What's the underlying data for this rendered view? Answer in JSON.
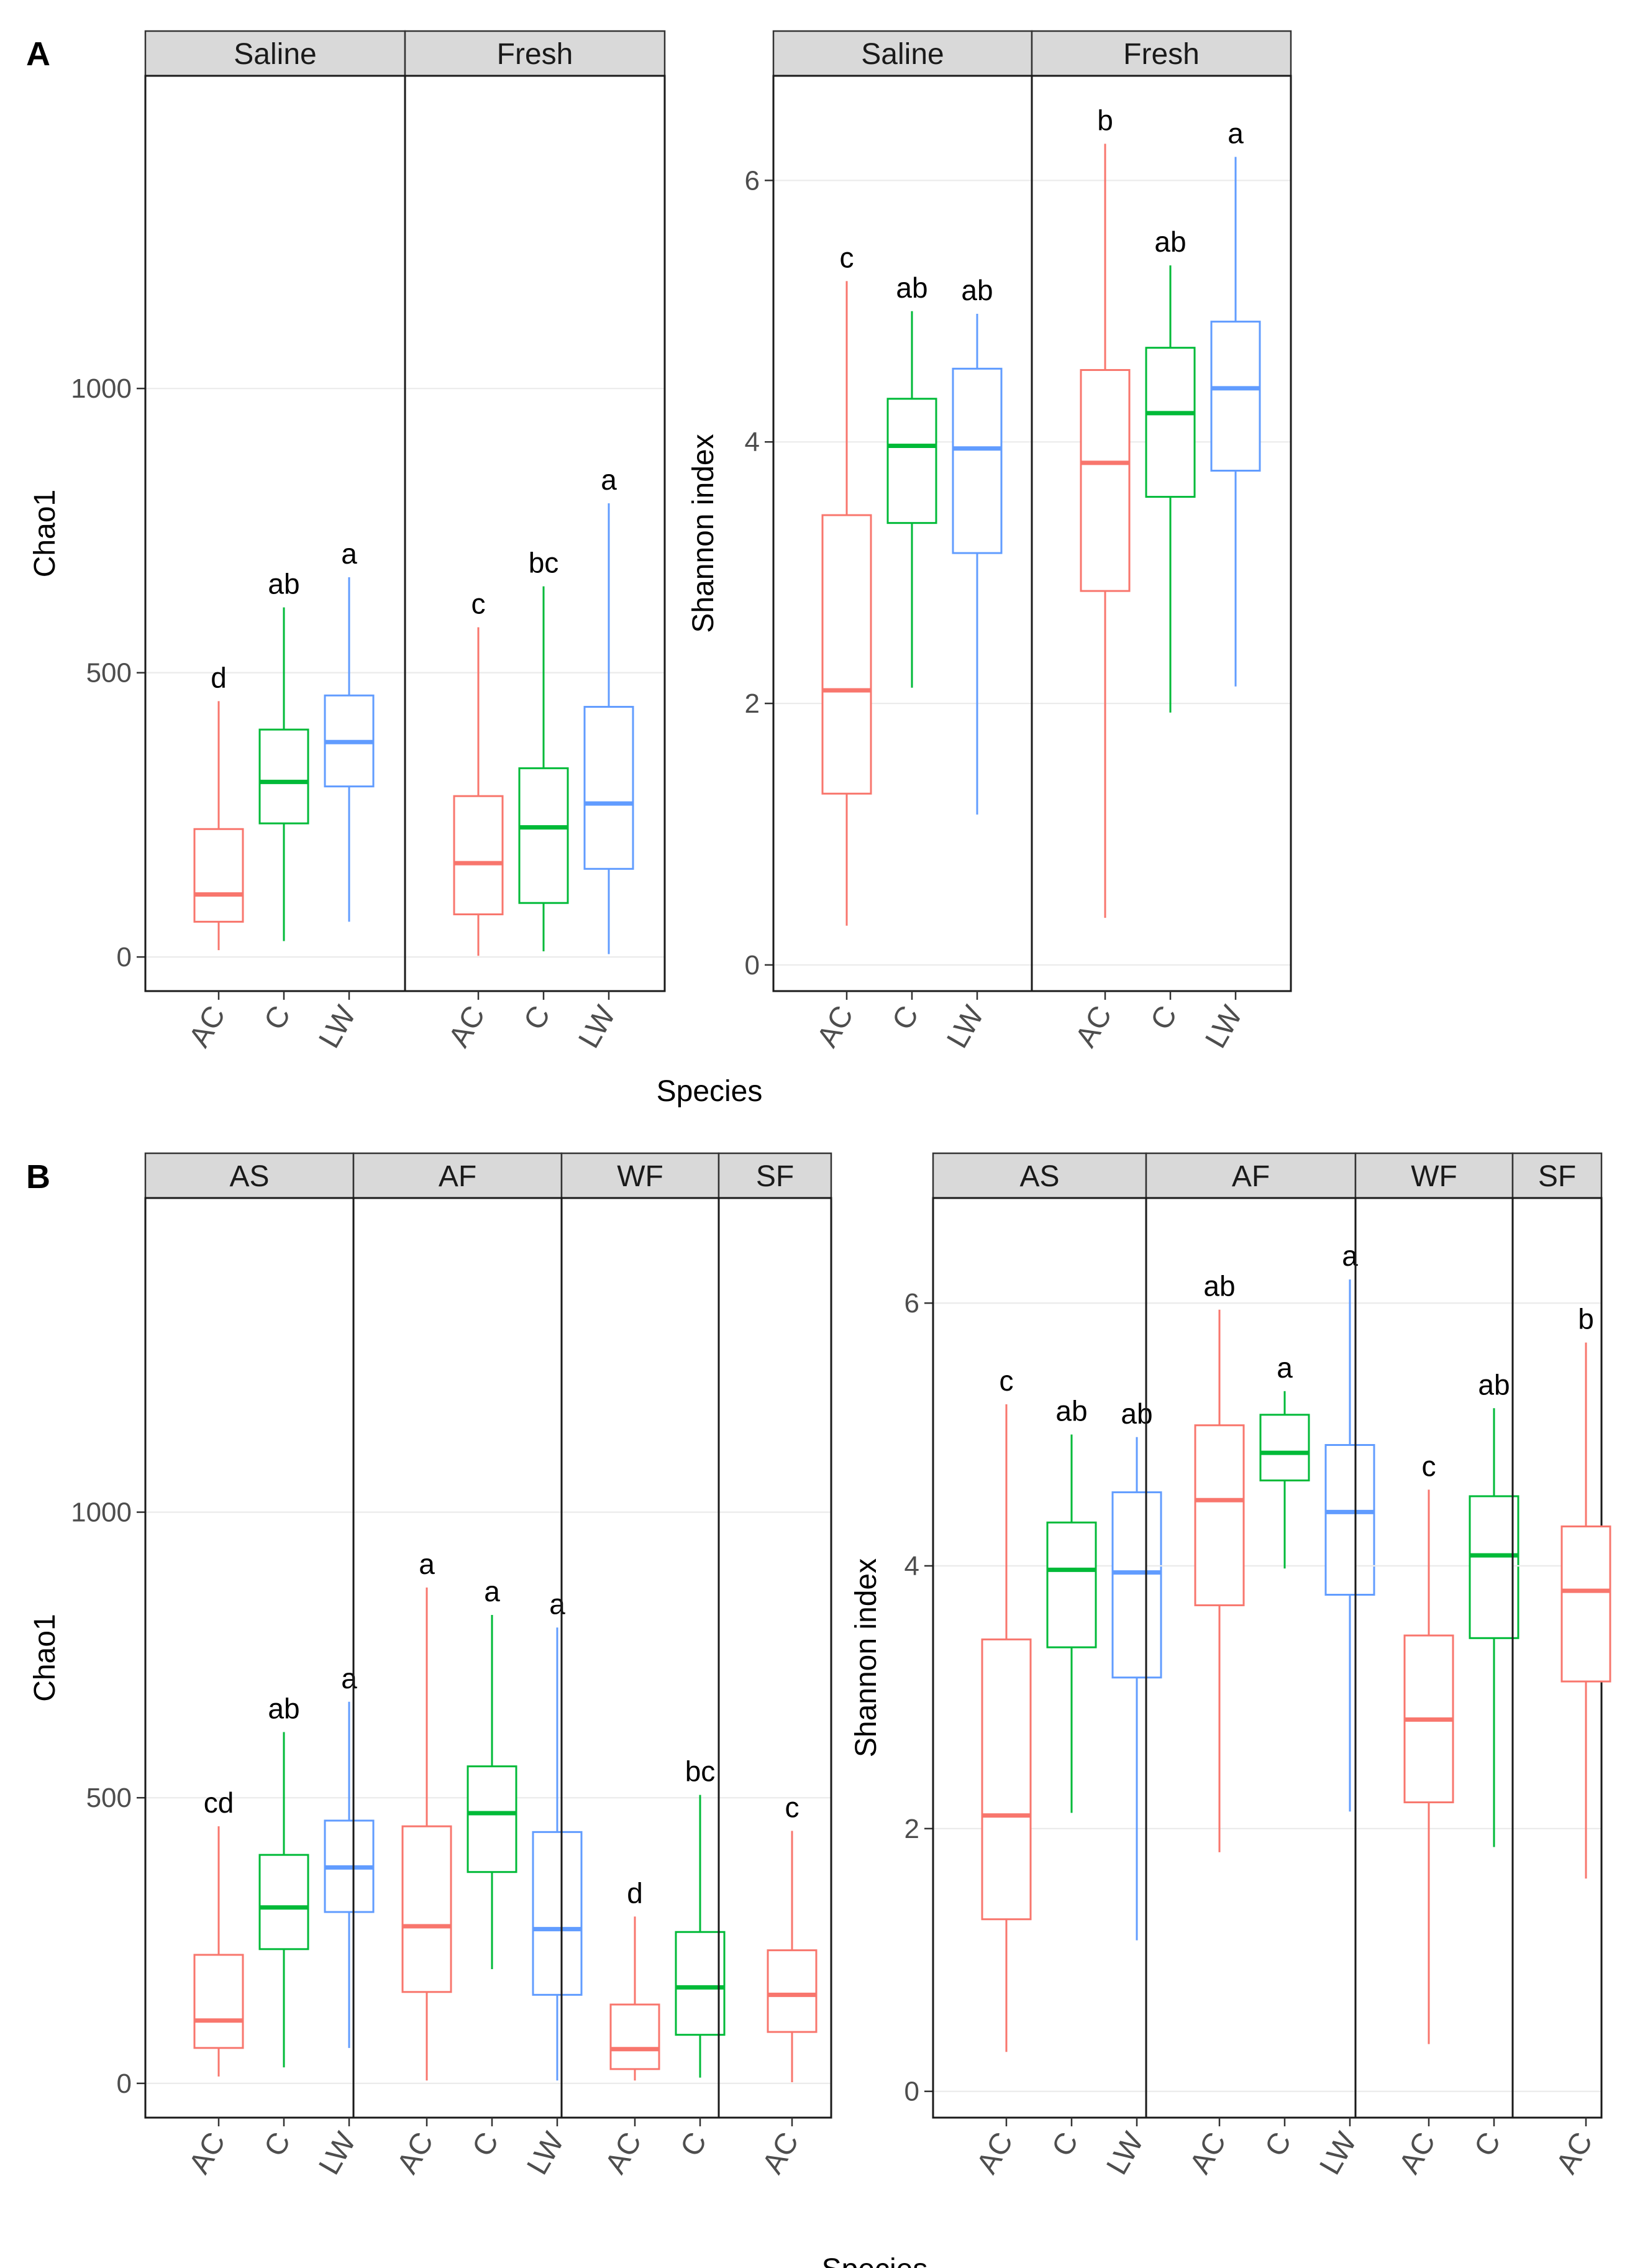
{
  "panels": [
    {
      "letter": "A"
    },
    {
      "letter": "B"
    }
  ],
  "chart_data": [
    {
      "type": "boxplot",
      "panel": "A",
      "xlabel": "Species",
      "ylabel": "Chao1",
      "ylim": [
        -60,
        1550
      ],
      "yticks": [
        0,
        500,
        1000
      ],
      "grid": true,
      "legend": "none",
      "facets": [
        {
          "label": "Saline",
          "boxes": [
            {
              "category": "AC",
              "min": 12,
              "q1": 62,
              "median": 110,
              "q3": 225,
              "max": 450,
              "sig": "d"
            },
            {
              "category": "C",
              "min": 28,
              "q1": 235,
              "median": 308,
              "q3": 400,
              "max": 615,
              "sig": "ab"
            },
            {
              "category": "LW",
              "min": 62,
              "q1": 300,
              "median": 378,
              "q3": 460,
              "max": 668,
              "sig": "a"
            }
          ]
        },
        {
          "label": "Fresh",
          "boxes": [
            {
              "category": "AC",
              "min": 2,
              "q1": 75,
              "median": 165,
              "q3": 283,
              "max": 580,
              "sig": "c"
            },
            {
              "category": "C",
              "min": 10,
              "q1": 95,
              "median": 228,
              "q3": 332,
              "max": 652,
              "sig": "bc"
            },
            {
              "category": "LW",
              "min": 5,
              "q1": 155,
              "median": 270,
              "q3": 440,
              "max": 798,
              "sig": "a"
            }
          ]
        }
      ]
    },
    {
      "type": "boxplot",
      "panel": "A",
      "xlabel": "",
      "ylabel": "Shannon index",
      "ylim": [
        -0.2,
        6.8
      ],
      "yticks": [
        0,
        2,
        4,
        6
      ],
      "grid": true,
      "legend": "none",
      "facets": [
        {
          "label": "Saline",
          "boxes": [
            {
              "category": "AC",
              "min": 0.3,
              "q1": 1.31,
              "median": 2.1,
              "q3": 3.44,
              "max": 5.23,
              "sig": "c"
            },
            {
              "category": "C",
              "min": 2.12,
              "q1": 3.38,
              "median": 3.97,
              "q3": 4.33,
              "max": 5.0,
              "sig": "ab"
            },
            {
              "category": "LW",
              "min": 1.15,
              "q1": 3.15,
              "median": 3.95,
              "q3": 4.56,
              "max": 4.98,
              "sig": "ab"
            }
          ]
        },
        {
          "label": "Fresh",
          "boxes": [
            {
              "category": "AC",
              "min": 0.36,
              "q1": 2.86,
              "median": 3.84,
              "q3": 4.55,
              "max": 6.28,
              "sig": "b"
            },
            {
              "category": "C",
              "min": 1.93,
              "q1": 3.58,
              "median": 4.22,
              "q3": 4.72,
              "max": 5.35,
              "sig": "ab"
            },
            {
              "category": "LW",
              "min": 2.13,
              "q1": 3.78,
              "median": 4.41,
              "q3": 4.92,
              "max": 6.18,
              "sig": "a"
            }
          ]
        }
      ]
    },
    {
      "type": "boxplot",
      "panel": "B",
      "xlabel": "Species",
      "ylabel": "Chao1",
      "ylim": [
        -60,
        1550
      ],
      "yticks": [
        0,
        500,
        1000
      ],
      "grid": true,
      "legend": "none",
      "facets": [
        {
          "label": "AS",
          "boxes": [
            {
              "category": "AC",
              "min": 12,
              "q1": 62,
              "median": 110,
              "q3": 225,
              "max": 450,
              "sig": "cd"
            },
            {
              "category": "C",
              "min": 28,
              "q1": 235,
              "median": 308,
              "q3": 400,
              "max": 615,
              "sig": "ab"
            },
            {
              "category": "LW",
              "min": 62,
              "q1": 300,
              "median": 378,
              "q3": 460,
              "max": 668,
              "sig": "a"
            }
          ]
        },
        {
          "label": "AF",
          "boxes": [
            {
              "category": "AC",
              "min": 5,
              "q1": 160,
              "median": 275,
              "q3": 450,
              "max": 868,
              "sig": "a"
            },
            {
              "category": "C",
              "min": 200,
              "q1": 370,
              "median": 473,
              "q3": 555,
              "max": 820,
              "sig": "a"
            },
            {
              "category": "LW",
              "min": 5,
              "q1": 155,
              "median": 270,
              "q3": 440,
              "max": 798,
              "sig": "a"
            }
          ]
        },
        {
          "label": "WF",
          "boxes": [
            {
              "category": "AC",
              "min": 5,
              "q1": 25,
              "median": 60,
              "q3": 138,
              "max": 292,
              "sig": "d"
            },
            {
              "category": "C",
              "min": 10,
              "q1": 85,
              "median": 168,
              "q3": 265,
              "max": 505,
              "sig": "bc"
            }
          ]
        },
        {
          "label": "SF",
          "boxes": [
            {
              "category": "AC",
              "min": 2,
              "q1": 90,
              "median": 155,
              "q3": 233,
              "max": 442,
              "sig": "c"
            }
          ]
        }
      ]
    },
    {
      "type": "boxplot",
      "panel": "B",
      "xlabel": "",
      "ylabel": "Shannon index",
      "ylim": [
        -0.2,
        6.8
      ],
      "yticks": [
        0,
        2,
        4,
        6
      ],
      "grid": true,
      "legend": "none",
      "facets": [
        {
          "label": "AS",
          "boxes": [
            {
              "category": "AC",
              "min": 0.3,
              "q1": 1.31,
              "median": 2.1,
              "q3": 3.44,
              "max": 5.23,
              "sig": "c"
            },
            {
              "category": "C",
              "min": 2.12,
              "q1": 3.38,
              "median": 3.97,
              "q3": 4.33,
              "max": 5.0,
              "sig": "ab"
            },
            {
              "category": "LW",
              "min": 1.15,
              "q1": 3.15,
              "median": 3.95,
              "q3": 4.56,
              "max": 4.98,
              "sig": "ab"
            }
          ]
        },
        {
          "label": "AF",
          "boxes": [
            {
              "category": "AC",
              "min": 1.82,
              "q1": 3.7,
              "median": 4.5,
              "q3": 5.07,
              "max": 5.95,
              "sig": "ab"
            },
            {
              "category": "C",
              "min": 3.98,
              "q1": 4.65,
              "median": 4.86,
              "q3": 5.15,
              "max": 5.33,
              "sig": "a"
            },
            {
              "category": "LW",
              "min": 2.13,
              "q1": 3.78,
              "median": 4.41,
              "q3": 4.92,
              "max": 6.18,
              "sig": "a"
            }
          ]
        },
        {
          "label": "WF",
          "boxes": [
            {
              "category": "AC",
              "min": 0.36,
              "q1": 2.2,
              "median": 2.83,
              "q3": 3.47,
              "max": 4.58,
              "sig": "c"
            },
            {
              "category": "C",
              "min": 1.86,
              "q1": 3.45,
              "median": 4.08,
              "q3": 4.53,
              "max": 5.2,
              "sig": "ab"
            }
          ]
        },
        {
          "label": "SF",
          "boxes": [
            {
              "category": "AC",
              "min": 1.62,
              "q1": 3.12,
              "median": 3.81,
              "q3": 4.3,
              "max": 5.7,
              "sig": "b"
            }
          ]
        }
      ]
    }
  ],
  "colors": {
    "AC": "#F8766D",
    "C": "#00BA38",
    "LW": "#619CFF",
    "strip_fill": "#D9D9D9",
    "grid": "#EBEBEB"
  }
}
